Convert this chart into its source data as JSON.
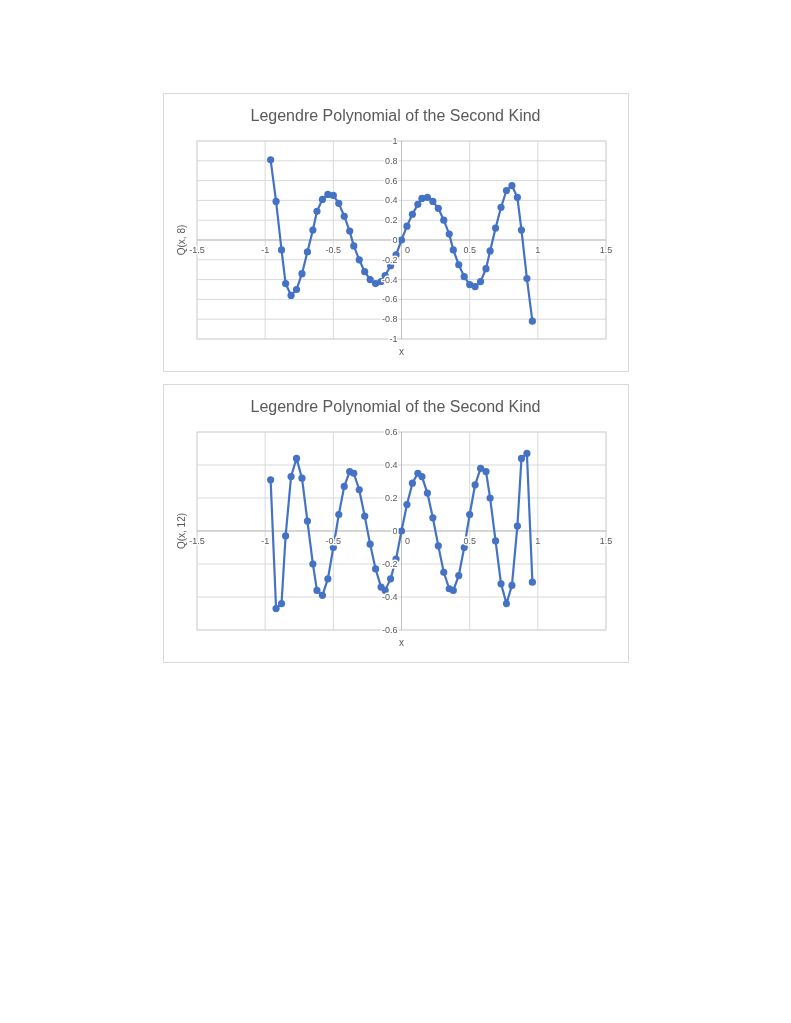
{
  "chart_data": [
    {
      "type": "line",
      "title": "Legendre Polynomial of the Second Kind",
      "xlabel": "x",
      "ylabel": "Q(x, 8)",
      "marker": "circle",
      "grid": true,
      "xlim": [
        -1.5,
        1.5
      ],
      "xticks": [
        -1.5,
        -1,
        -0.5,
        0,
        0.5,
        1,
        1.5
      ],
      "ylim": [
        -1,
        1
      ],
      "yticks": [
        -1,
        -0.8,
        -0.6,
        -0.4,
        -0.2,
        0,
        0.2,
        0.4,
        0.6,
        0.8,
        1
      ],
      "x": [
        -0.96,
        -0.92,
        -0.88,
        -0.85,
        -0.81,
        -0.77,
        -0.73,
        -0.69,
        -0.65,
        -0.62,
        -0.58,
        -0.54,
        -0.5,
        -0.46,
        -0.42,
        -0.38,
        -0.35,
        -0.31,
        -0.27,
        -0.23,
        -0.19,
        -0.15,
        -0.12,
        -0.08,
        -0.04,
        0,
        0.04,
        0.08,
        0.12,
        0.15,
        0.19,
        0.23,
        0.27,
        0.31,
        0.35,
        0.38,
        0.42,
        0.46,
        0.5,
        0.54,
        0.58,
        0.62,
        0.65,
        0.69,
        0.73,
        0.77,
        0.81,
        0.85,
        0.88,
        0.92,
        0.96
      ],
      "series": [
        {
          "color": "#4472c4",
          "values": [
            0.81,
            0.39,
            -0.1,
            -0.44,
            -0.56,
            -0.5,
            -0.34,
            -0.12,
            0.1,
            0.29,
            0.41,
            0.46,
            0.45,
            0.37,
            0.24,
            0.09,
            -0.06,
            -0.2,
            -0.32,
            -0.4,
            -0.44,
            -0.42,
            -0.36,
            -0.26,
            -0.15,
            0,
            0.14,
            0.26,
            0.36,
            0.42,
            0.43,
            0.39,
            0.32,
            0.2,
            0.06,
            -0.1,
            -0.25,
            -0.37,
            -0.45,
            -0.47,
            -0.42,
            -0.29,
            -0.11,
            0.12,
            0.33,
            0.5,
            0.55,
            0.43,
            0.1,
            -0.39,
            -0.82
          ]
        }
      ]
    },
    {
      "type": "line",
      "title": "Legendre Polynomial of the Second Kind",
      "xlabel": "x",
      "ylabel": "Q(x, 12)",
      "marker": "circle",
      "grid": true,
      "xlim": [
        -1.5,
        1.5
      ],
      "xticks": [
        -1.5,
        -1,
        -0.5,
        0,
        0.5,
        1,
        1.5
      ],
      "ylim": [
        -0.6,
        0.6
      ],
      "yticks": [
        -0.6,
        -0.4,
        -0.2,
        0,
        0.2,
        0.4,
        0.6
      ],
      "x": [
        -0.96,
        -0.92,
        -0.88,
        -0.85,
        -0.81,
        -0.77,
        -0.73,
        -0.69,
        -0.65,
        -0.62,
        -0.58,
        -0.54,
        -0.5,
        -0.46,
        -0.42,
        -0.38,
        -0.35,
        -0.31,
        -0.27,
        -0.23,
        -0.19,
        -0.15,
        -0.12,
        -0.08,
        -0.04,
        0,
        0.04,
        0.08,
        0.12,
        0.15,
        0.19,
        0.23,
        0.27,
        0.31,
        0.35,
        0.38,
        0.42,
        0.46,
        0.5,
        0.54,
        0.58,
        0.62,
        0.65,
        0.69,
        0.73,
        0.77,
        0.81,
        0.85,
        0.88,
        0.92,
        0.96
      ],
      "series": [
        {
          "color": "#4472c4",
          "values": [
            0.31,
            -0.47,
            -0.44,
            -0.03,
            0.33,
            0.44,
            0.32,
            0.06,
            -0.2,
            -0.36,
            -0.39,
            -0.29,
            -0.1,
            0.1,
            0.27,
            0.36,
            0.35,
            0.25,
            0.09,
            -0.08,
            -0.23,
            -0.34,
            -0.36,
            -0.29,
            -0.17,
            0,
            0.16,
            0.29,
            0.35,
            0.33,
            0.23,
            0.08,
            -0.09,
            -0.25,
            -0.35,
            -0.36,
            -0.27,
            -0.1,
            0.1,
            0.28,
            0.38,
            0.36,
            0.2,
            -0.06,
            -0.32,
            -0.44,
            -0.33,
            0.03,
            0.44,
            0.47,
            -0.31
          ]
        }
      ]
    }
  ]
}
